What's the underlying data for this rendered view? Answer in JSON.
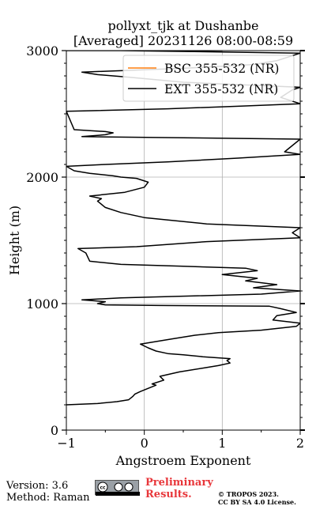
{
  "chart_data": {
    "type": "line",
    "title": "pollyxt_tjk at Dushanbe",
    "subtitle": "[Averaged] 20231126 08:00-08:59",
    "xlabel": "Angstroem Exponent",
    "ylabel": "Height (m)",
    "xlim": [
      -1,
      2
    ],
    "ylim": [
      0,
      3000
    ],
    "x_ticks": [
      -1,
      0,
      1,
      2
    ],
    "x_tick_labels": [
      "−1",
      "0",
      "1",
      "2"
    ],
    "y_ticks": [
      0,
      1000,
      2000,
      3000
    ],
    "y_tick_labels": [
      "0",
      "1000",
      "2000",
      "3000"
    ],
    "grid": true,
    "legend_position": "top-right",
    "series": [
      {
        "name": "BSC 355-532 (NR)",
        "color": "#ff7f0e",
        "x": [],
        "y": []
      },
      {
        "name": "EXT 355-532 (NR)",
        "color": "#000000",
        "x": [
          -1.0,
          -0.6,
          -0.35,
          -0.2,
          -0.15,
          -0.12,
          -0.05,
          0.05,
          0.15,
          0.1,
          0.25,
          0.2,
          0.45,
          0.75,
          0.95,
          1.1,
          1.06,
          1.1,
          0.75,
          0.5,
          0.3,
          0.15,
          0.05,
          -0.05,
          0.05,
          0.35,
          0.65,
          0.95,
          1.5,
          1.95,
          2.0,
          1.65,
          1.7,
          1.95,
          1.75,
          1.6,
          0.2,
          -0.5,
          -0.6,
          -0.5,
          -0.8,
          -0.3,
          1.5,
          2.0,
          1.4,
          1.7,
          1.3,
          1.45,
          1.0,
          1.45,
          1.3,
          0.5,
          -0.3,
          -0.7,
          -0.75,
          -0.85,
          -0.1,
          0.8,
          2.0,
          1.9,
          2.0,
          0.8,
          0.0,
          -0.3,
          -0.5,
          -0.6,
          -0.55,
          -0.7,
          -0.25,
          0.0,
          0.05,
          -0.1,
          -0.3,
          -0.4,
          -0.7,
          -0.9,
          -1.0,
          -0.5,
          0.3,
          1.2,
          2.0,
          1.8,
          2.0,
          -0.8,
          -0.5,
          -0.4,
          -0.5,
          -0.9,
          -1.0,
          0.3,
          1.2,
          2.0,
          1.75,
          1.9,
          2.0,
          0.5,
          -0.2,
          -0.6,
          -0.8,
          0.5,
          1.4,
          1.7,
          2.0,
          -0.3,
          -0.85,
          -1.0,
          0.8,
          1.0
        ],
        "y": [
          200,
          210,
          225,
          240,
          265,
          285,
          305,
          330,
          355,
          365,
          395,
          425,
          460,
          490,
          510,
          530,
          550,
          565,
          580,
          595,
          605,
          625,
          650,
          680,
          690,
          720,
          750,
          770,
          790,
          820,
          845,
          870,
          905,
          930,
          960,
          980,
          985,
          990,
          1000,
          1015,
          1030,
          1045,
          1075,
          1100,
          1125,
          1150,
          1180,
          1200,
          1230,
          1260,
          1280,
          1295,
          1310,
          1335,
          1400,
          1435,
          1450,
          1490,
          1520,
          1560,
          1600,
          1630,
          1680,
          1720,
          1760,
          1810,
          1830,
          1850,
          1880,
          1920,
          1960,
          1990,
          2000,
          2010,
          2030,
          2050,
          2085,
          2100,
          2120,
          2150,
          2180,
          2200,
          2300,
          2320,
          2335,
          2350,
          2360,
          2375,
          2520,
          2540,
          2560,
          2580,
          2630,
          2690,
          2710,
          2750,
          2790,
          2810,
          2830,
          2860,
          2890,
          2920,
          2980,
          3000,
          3000,
          3000,
          3000,
          3000
        ]
      }
    ]
  },
  "footer": {
    "version": "Version: 3.6",
    "method": "Method: Raman",
    "preliminary_line1": "Preliminary",
    "preliminary_line2": "Results.",
    "copyright_line1": "© TROPOS 2023.",
    "copyright_line2": "CC BY SA 4.0 License.",
    "license_badge_color": "#9aa0a6",
    "preliminary_color": "#e8363a"
  }
}
